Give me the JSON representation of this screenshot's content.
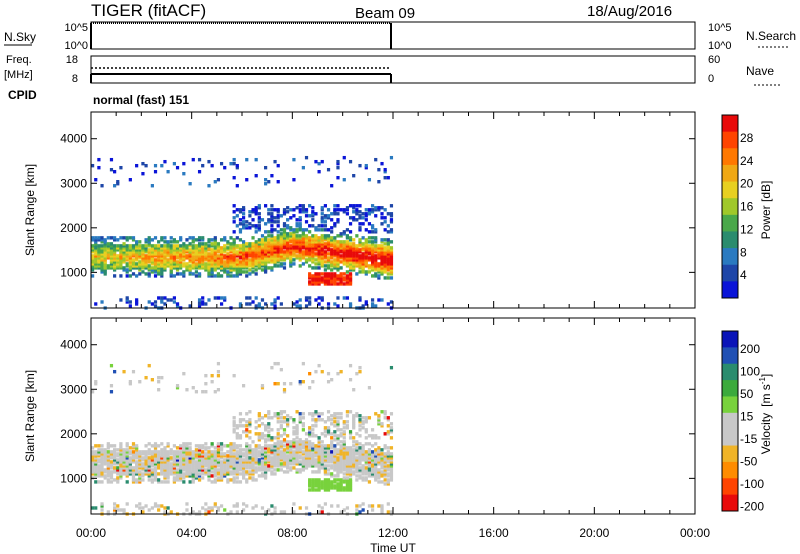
{
  "header": {
    "station": "TIGER (fitACF)",
    "beam": "Beam 09",
    "date": "18/Aug/2016"
  },
  "nsky_panel": {
    "left_label": "N.Sky",
    "left_ticks": [
      "10^5",
      "10^0"
    ],
    "right_ticks": [
      "10^5",
      "10^0"
    ],
    "right_label": "N.Search"
  },
  "freq_panel": {
    "left_label_1": "Freq.",
    "left_label_2": "[MHz]",
    "left_ticks": [
      "18",
      "8"
    ],
    "right_ticks": [
      "60",
      "0"
    ],
    "right_label": "Nave"
  },
  "cpid": {
    "label": "CPID",
    "value": "normal (fast) 151"
  },
  "chart_data": [
    {
      "type": "heatmap",
      "name": "Power",
      "ylabel": "Slant Range [km]",
      "ylim": [
        200,
        4600
      ],
      "yticks": [
        1000,
        2000,
        3000,
        4000
      ],
      "xlim": [
        0,
        24
      ],
      "colorbar": {
        "label": "Power [dB]",
        "ticks": [
          "28",
          "24",
          "20",
          "16",
          "12",
          "8",
          "4"
        ],
        "colors": [
          "#0a14d8",
          "#1e46a8",
          "#2a7ac0",
          "#2a8c6e",
          "#4aa84a",
          "#a0c82a",
          "#e8d020",
          "#f0a814",
          "#ff7800",
          "#ff4400",
          "#e80a0a"
        ]
      },
      "data_extent_hours": [
        0,
        12
      ]
    },
    {
      "type": "heatmap",
      "name": "Velocity",
      "ylabel": "Slant Range [km]",
      "ylim": [
        200,
        4600
      ],
      "yticks": [
        1000,
        2000,
        3000,
        4000
      ],
      "xlim": [
        0,
        24
      ],
      "colorbar": {
        "label": "Velocity",
        "unit_base": "[m s",
        "unit_exp": "-1",
        "unit_close": "]",
        "ticks": [
          "200",
          "100",
          "50",
          "15",
          "-15",
          "-50",
          "-100",
          "-200"
        ],
        "colors": [
          "#e80a0a",
          "#ff4400",
          "#ff8c00",
          "#f0b428",
          "#c8c8c8",
          "#c8c8c8",
          "#78d23c",
          "#3caa3c",
          "#2a8c6e",
          "#2050b4",
          "#0a14b8"
        ]
      },
      "data_extent_hours": [
        0,
        12
      ]
    }
  ],
  "xaxis": {
    "ticks": [
      "00:00",
      "04:00",
      "08:00",
      "12:00",
      "16:00",
      "20:00",
      "00:00"
    ],
    "label": "Time UT"
  }
}
